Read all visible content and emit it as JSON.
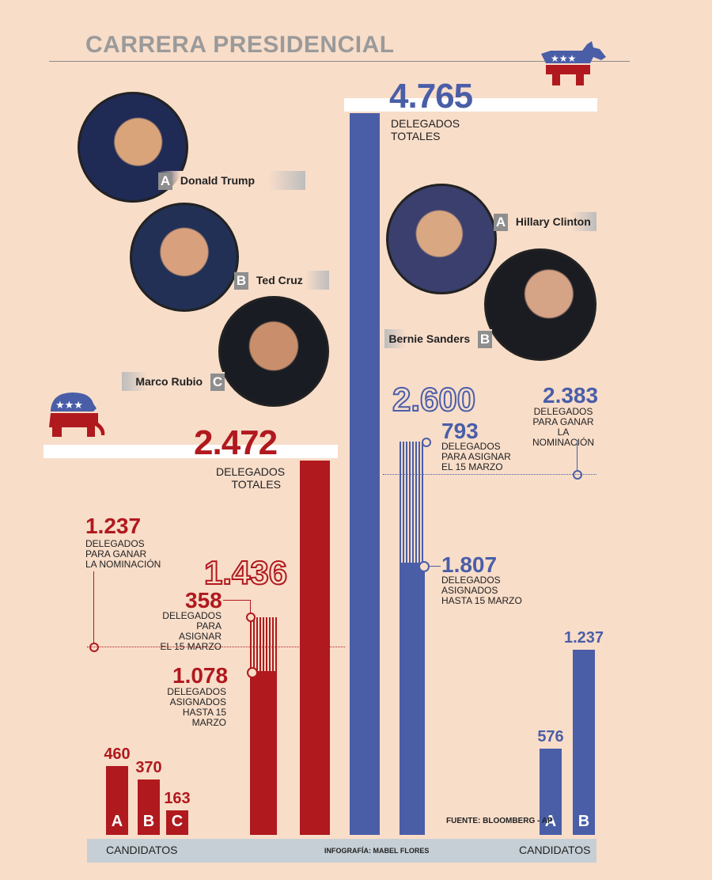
{
  "title": "CARRERA PRESIDENCIAL",
  "colors": {
    "republican": "#b0191e",
    "democrat": "#4a5ea8",
    "background": "#f8ddc9"
  },
  "icons": {
    "republican": "elephant-icon",
    "democrat": "donkey-icon"
  },
  "republican": {
    "candidates": [
      {
        "letter": "A",
        "name": "Donald Trump"
      },
      {
        "letter": "B",
        "name": "Ted Cruz"
      },
      {
        "letter": "C",
        "name": "Marco Rubio"
      }
    ],
    "total": "2.472",
    "total_label": [
      "DELEGADOS",
      "TOTALES"
    ],
    "to_win": "1.237",
    "to_win_label": [
      "DELEGADOS",
      "PARA GANAR",
      "LA NOMINACIÓN"
    ],
    "cumulative": "1.436",
    "to_assign": "358",
    "to_assign_label": [
      "DELEGADOS",
      "PARA ASIGNAR",
      "EL 15 MARZO"
    ],
    "assigned": "1.078",
    "assigned_label": [
      "DELEGADOS",
      "ASIGNADOS",
      "HASTA 15 MARZO"
    ]
  },
  "democrat": {
    "candidates": [
      {
        "letter": "A",
        "name": "Hillary Clinton"
      },
      {
        "letter": "B",
        "name": "Bernie Sanders"
      }
    ],
    "total": "4.765",
    "total_label": [
      "DELEGADOS",
      "TOTALES"
    ],
    "to_win": "2.383",
    "to_win_label": [
      "DELEGADOS",
      "PARA GANAR LA",
      "NOMINACIÓN"
    ],
    "cumulative": "2.600",
    "to_assign": "793",
    "to_assign_label": [
      "DELEGADOS",
      "PARA ASIGNAR",
      "EL 15 MARZO"
    ],
    "assigned": "1.807",
    "assigned_label": [
      "DELEGADOS",
      "ASIGNADOS",
      "HASTA 15 MARZO"
    ]
  },
  "footer": {
    "left": "CANDIDATOS",
    "center": "INFOGRAFÍA: MABEL FLORES",
    "right": "CANDIDATOS",
    "source": "FUENTE: BLOOMBERG - AP"
  },
  "chart_data": {
    "type": "bar",
    "title": "CARRERA PRESIDENCIAL",
    "series": [
      {
        "name": "Republicanos",
        "categories": [
          "A",
          "B",
          "C"
        ],
        "values": [
          460,
          370,
          163
        ]
      },
      {
        "name": "Demócratas",
        "categories": [
          "A",
          "B"
        ],
        "values": [
          576,
          1237
        ]
      }
    ],
    "totals": {
      "republican_total": 2472,
      "democrat_total": 4765
    },
    "to_win": {
      "republican": 1237,
      "democrat": 2383
    },
    "assigned_until_march15": {
      "republican": 1078,
      "democrat": 1807
    },
    "to_assign_march15": {
      "republican": 358,
      "democrat": 793
    },
    "cumulative": {
      "republican": 1436,
      "democrat": 2600
    },
    "value_labels": [
      "460",
      "370",
      "163",
      "576",
      "1.237"
    ]
  }
}
